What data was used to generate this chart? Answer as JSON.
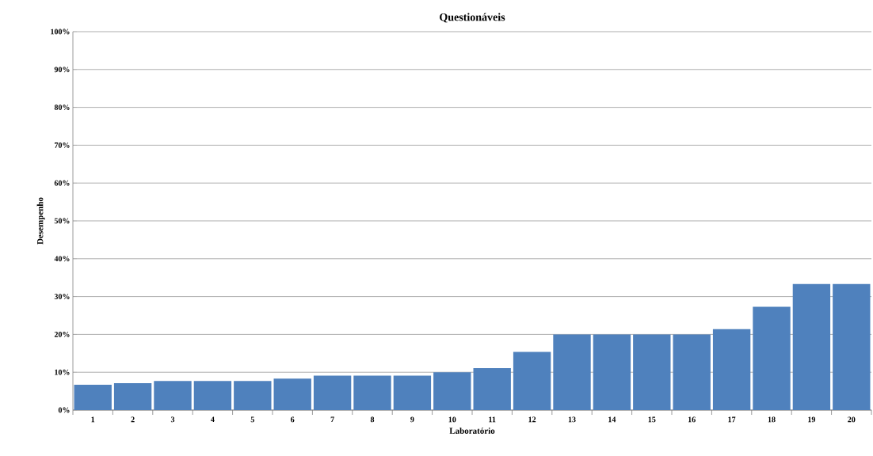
{
  "chart_data": {
    "type": "bar",
    "title": "Questionáveis",
    "xlabel": "Laboratório",
    "ylabel": "Desempenho",
    "categories": [
      "1",
      "2",
      "3",
      "4",
      "5",
      "6",
      "7",
      "8",
      "9",
      "10",
      "11",
      "12",
      "13",
      "14",
      "15",
      "16",
      "17",
      "18",
      "19",
      "20"
    ],
    "values": [
      6.7,
      7.1,
      7.7,
      7.7,
      7.7,
      8.3,
      9.1,
      9.1,
      9.1,
      10,
      11.1,
      15.4,
      20,
      20,
      20,
      20,
      21.4,
      27.3,
      33.3,
      33.3
    ],
    "color": "#4f81bd",
    "ylim": [
      0,
      100
    ],
    "yticks": [
      {
        "value": 0,
        "label": "0%"
      },
      {
        "value": 10,
        "label": "10%"
      },
      {
        "value": 20,
        "label": "20%"
      },
      {
        "value": 30,
        "label": "30%"
      },
      {
        "value": 40,
        "label": "40%"
      },
      {
        "value": 50,
        "label": "50%"
      },
      {
        "value": 60,
        "label": "60%"
      },
      {
        "value": 70,
        "label": "70%"
      },
      {
        "value": 80,
        "label": "80%"
      },
      {
        "value": 90,
        "label": "90%"
      },
      {
        "value": 100,
        "label": "100%"
      }
    ],
    "grid": "y"
  }
}
